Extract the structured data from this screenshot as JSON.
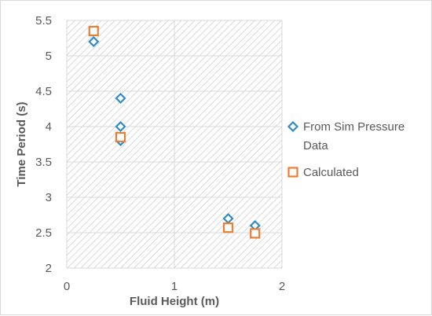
{
  "chart_data": {
    "type": "scatter",
    "title": "",
    "xlabel": "Fluid Height (m)",
    "ylabel": "Time Period (s)",
    "xlim": [
      0,
      2
    ],
    "ylim": [
      2,
      5.5
    ],
    "x_ticks": [
      0,
      1,
      2
    ],
    "y_ticks": [
      2,
      2.5,
      3,
      3.5,
      4,
      4.5,
      5,
      5.5
    ],
    "x_tick_labels": [
      "0",
      "1",
      "2"
    ],
    "y_tick_labels": [
      "2",
      "2.5",
      "3",
      "3.5",
      "4",
      "4.5",
      "5",
      "5.5"
    ],
    "grid": true,
    "plot_background": "hatched",
    "legend_position": "right",
    "series": [
      {
        "name": "From Sim Pressure Data",
        "legend_lines": [
          "From Sim Pressure",
          "Data"
        ],
        "marker": "diamond",
        "color": "#2E8BC7",
        "points": [
          [
            0.25,
            5.2
          ],
          [
            0.5,
            4.4
          ],
          [
            0.5,
            4.0
          ],
          [
            0.5,
            3.8
          ],
          [
            1.5,
            2.7
          ],
          [
            1.75,
            2.6
          ]
        ]
      },
      {
        "name": "Calculated",
        "legend_lines": [
          "Calculated"
        ],
        "marker": "square",
        "color": "#ED7D31",
        "points": [
          [
            0.25,
            5.35
          ],
          [
            0.5,
            3.85
          ],
          [
            1.5,
            2.57
          ],
          [
            1.75,
            2.49
          ]
        ]
      }
    ]
  }
}
